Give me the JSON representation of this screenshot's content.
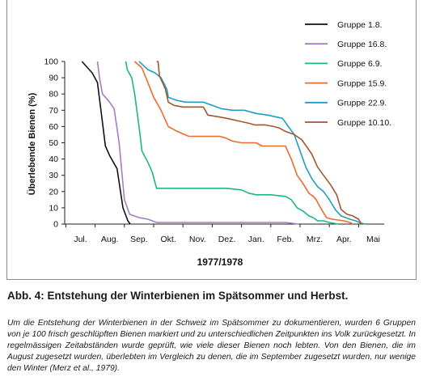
{
  "chart_data": {
    "type": "line",
    "title": "",
    "xlabel": "1977/1978",
    "ylabel": "Überlebende Bienen (%)",
    "ylim": [
      0,
      100
    ],
    "yticks": [
      0,
      10,
      20,
      30,
      40,
      50,
      60,
      70,
      80,
      90,
      100
    ],
    "grid": false,
    "legend_position": "top-right",
    "months": [
      "Jul.",
      "Aug.",
      "Sep.",
      "Okt.",
      "Nov.",
      "Dez.",
      "Jan.",
      "Feb.",
      "Mrz.",
      "Apr.",
      "Mai"
    ],
    "series": [
      {
        "name": "Gruppe 1.8.",
        "color": "#111111",
        "points": [
          [
            0.05,
            100
          ],
          [
            0.4,
            93
          ],
          [
            0.58,
            87
          ],
          [
            0.7,
            70
          ],
          [
            0.85,
            48
          ],
          [
            1.0,
            42
          ],
          [
            1.25,
            34
          ],
          [
            1.45,
            10
          ],
          [
            1.62,
            2
          ],
          [
            1.7,
            0
          ]
        ]
      },
      {
        "name": "Gruppe 16.8.",
        "color": "#a77bc4",
        "points": [
          [
            0.58,
            100
          ],
          [
            0.65,
            90
          ],
          [
            0.75,
            80
          ],
          [
            0.95,
            76
          ],
          [
            1.15,
            71
          ],
          [
            1.32,
            50
          ],
          [
            1.5,
            15
          ],
          [
            1.68,
            6
          ],
          [
            2.0,
            4
          ],
          [
            2.3,
            3
          ],
          [
            2.6,
            1
          ],
          [
            3.0,
            1
          ],
          [
            5.0,
            1
          ],
          [
            7.0,
            1
          ],
          [
            7.45,
            0
          ]
        ]
      },
      {
        "name": "Gruppe 6.9.",
        "color": "#1db684",
        "points": [
          [
            1.55,
            100
          ],
          [
            1.6,
            95
          ],
          [
            1.75,
            90
          ],
          [
            1.85,
            80
          ],
          [
            2.0,
            60
          ],
          [
            2.1,
            45
          ],
          [
            2.3,
            38
          ],
          [
            2.45,
            32
          ],
          [
            2.6,
            22
          ],
          [
            2.75,
            22
          ],
          [
            3.0,
            22
          ],
          [
            4.0,
            22
          ],
          [
            5.0,
            22
          ],
          [
            5.5,
            21
          ],
          [
            5.75,
            19
          ],
          [
            6.0,
            18
          ],
          [
            6.5,
            18
          ],
          [
            7.0,
            17
          ],
          [
            7.2,
            15
          ],
          [
            7.4,
            10
          ],
          [
            7.6,
            8
          ],
          [
            7.8,
            5
          ],
          [
            7.95,
            4
          ],
          [
            8.1,
            2
          ],
          [
            8.3,
            2
          ],
          [
            8.5,
            1
          ],
          [
            8.8,
            0
          ]
        ]
      },
      {
        "name": "Gruppe 15.9.",
        "color": "#ee6a2e",
        "points": [
          [
            1.85,
            100
          ],
          [
            2.1,
            96
          ],
          [
            2.3,
            87
          ],
          [
            2.5,
            78
          ],
          [
            2.75,
            70
          ],
          [
            3.0,
            60
          ],
          [
            3.3,
            57
          ],
          [
            3.7,
            54
          ],
          [
            4.0,
            54
          ],
          [
            4.5,
            54
          ],
          [
            4.75,
            54
          ],
          [
            4.95,
            53
          ],
          [
            5.2,
            51
          ],
          [
            5.5,
            50
          ],
          [
            6.0,
            50
          ],
          [
            6.2,
            48
          ],
          [
            6.6,
            48
          ],
          [
            7.0,
            48
          ],
          [
            7.2,
            40
          ],
          [
            7.4,
            30
          ],
          [
            7.6,
            25
          ],
          [
            7.8,
            19
          ],
          [
            7.95,
            17
          ],
          [
            8.05,
            15
          ],
          [
            8.2,
            10
          ],
          [
            8.4,
            4
          ],
          [
            8.6,
            3
          ],
          [
            9.0,
            2
          ],
          [
            9.2,
            1
          ],
          [
            9.3,
            0
          ]
        ]
      },
      {
        "name": "Gruppe 22.9.",
        "color": "#1f9dc5",
        "points": [
          [
            2.0,
            100
          ],
          [
            2.3,
            95
          ],
          [
            2.55,
            93
          ],
          [
            2.75,
            90
          ],
          [
            2.95,
            83
          ],
          [
            3.0,
            78
          ],
          [
            3.3,
            76
          ],
          [
            3.6,
            75
          ],
          [
            4.0,
            75
          ],
          [
            4.2,
            75
          ],
          [
            4.5,
            73
          ],
          [
            4.8,
            71
          ],
          [
            5.2,
            70
          ],
          [
            5.6,
            70
          ],
          [
            6.0,
            68
          ],
          [
            6.4,
            67
          ],
          [
            6.9,
            65
          ],
          [
            7.1,
            60
          ],
          [
            7.3,
            55
          ],
          [
            7.5,
            45
          ],
          [
            7.7,
            35
          ],
          [
            7.9,
            28
          ],
          [
            8.1,
            23
          ],
          [
            8.3,
            20
          ],
          [
            8.5,
            15
          ],
          [
            8.7,
            9
          ],
          [
            8.9,
            5
          ],
          [
            9.2,
            3
          ],
          [
            9.4,
            2
          ],
          [
            9.6,
            0.5
          ],
          [
            9.75,
            0
          ]
        ]
      },
      {
        "name": "Gruppe 10.10.",
        "color": "#a3562d",
        "points": [
          [
            2.6,
            100
          ],
          [
            2.65,
            100
          ],
          [
            2.7,
            91
          ],
          [
            2.8,
            87
          ],
          [
            2.9,
            83
          ],
          [
            3.0,
            75
          ],
          [
            3.2,
            73
          ],
          [
            3.5,
            72
          ],
          [
            4.0,
            72
          ],
          [
            4.2,
            72
          ],
          [
            4.35,
            67
          ],
          [
            4.7,
            66
          ],
          [
            5.0,
            65
          ],
          [
            5.5,
            63
          ],
          [
            5.75,
            62
          ],
          [
            5.95,
            61
          ],
          [
            6.3,
            61
          ],
          [
            6.6,
            60
          ],
          [
            6.8,
            59
          ],
          [
            7.0,
            57
          ],
          [
            7.3,
            55
          ],
          [
            7.55,
            52
          ],
          [
            7.75,
            47
          ],
          [
            7.9,
            43
          ],
          [
            8.1,
            35
          ],
          [
            8.3,
            30
          ],
          [
            8.55,
            24
          ],
          [
            8.75,
            18
          ],
          [
            8.9,
            9
          ],
          [
            9.1,
            6
          ],
          [
            9.3,
            5
          ],
          [
            9.5,
            3
          ],
          [
            9.6,
            0
          ]
        ]
      }
    ]
  },
  "caption": {
    "title": "Abb. 4: Entstehung der Winterbienen im Spätsommer und Herbst.",
    "body": "Um die Entstehung der Winterbienen in der Schweiz im Spätsommer zu dokumentieren, wurden 6 Gruppen von je 100 frisch geschlüpften Bienen markiert und zu unterschiedlichen Zeitpunkten ins Volk zurückgesetzt. In regelmässigen Zeitabständen wurde geprüft, wie viele dieser Bienen noch lebten. Von den Bienen, die im August zugesetzt wurden, überlebten im Vergleich zu denen, die im September zugesetzt wurden, nur wenige den Winter (Merz et al., 1979)."
  }
}
